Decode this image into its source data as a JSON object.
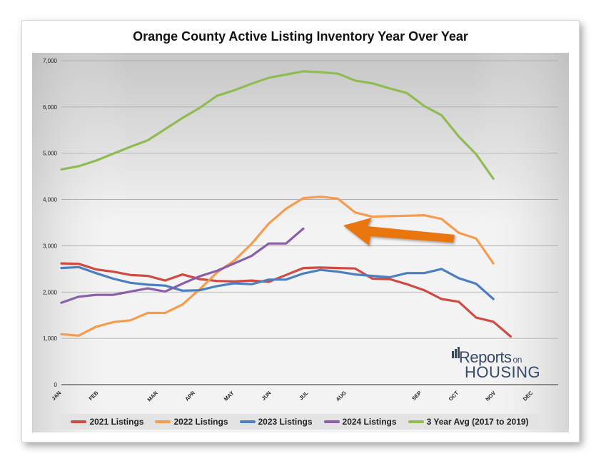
{
  "chart_data": {
    "type": "line",
    "title": "Orange County Active Listing Inventory Year Over Year",
    "xlabel": "",
    "ylabel": "",
    "ylim": [
      0,
      7000
    ],
    "yticks": [
      "0",
      "1,000",
      "2,000",
      "3,000",
      "4,000",
      "5,000",
      "6,000",
      "7,000"
    ],
    "grid": true,
    "legend_position": "bottom",
    "month_labels": [
      {
        "label": "JAN",
        "week": 0
      },
      {
        "label": "FEB",
        "week": 4.3
      },
      {
        "label": "MAR",
        "week": 11.2
      },
      {
        "label": "APR",
        "week": 15.5
      },
      {
        "label": "MAY",
        "week": 20.0
      },
      {
        "label": "JUN",
        "week": 24.3
      },
      {
        "label": "JUL",
        "week": 28.6
      },
      {
        "label": "AUG",
        "week": 33.0
      },
      {
        "label": "SEP",
        "week": 41.7
      },
      {
        "label": "OCT",
        "week": 46.0
      },
      {
        "label": "NOV",
        "week": 50.3
      },
      {
        "label": "DEC",
        "week": 54.6
      }
    ],
    "x_max_week": 57.5,
    "series": [
      {
        "name": "2021 Listings",
        "color": "#d04a43",
        "points": [
          [
            0,
            2620
          ],
          [
            2,
            2610
          ],
          [
            4,
            2490
          ],
          [
            6,
            2440
          ],
          [
            8,
            2370
          ],
          [
            10,
            2350
          ],
          [
            12,
            2250
          ],
          [
            14,
            2380
          ],
          [
            16,
            2280
          ],
          [
            18,
            2240
          ],
          [
            20,
            2230
          ],
          [
            22,
            2250
          ],
          [
            24,
            2220
          ],
          [
            26,
            2370
          ],
          [
            28,
            2520
          ],
          [
            30,
            2530
          ],
          [
            32,
            2520
          ],
          [
            34,
            2510
          ],
          [
            36,
            2290
          ],
          [
            38,
            2280
          ],
          [
            40,
            2170
          ],
          [
            42,
            2040
          ],
          [
            44,
            1850
          ],
          [
            46,
            1790
          ],
          [
            48,
            1450
          ],
          [
            50,
            1360
          ],
          [
            52,
            1040
          ]
        ]
      },
      {
        "name": "2022 Listings",
        "color": "#f59c4e",
        "points": [
          [
            0,
            1090
          ],
          [
            2,
            1060
          ],
          [
            4,
            1250
          ],
          [
            6,
            1350
          ],
          [
            8,
            1390
          ],
          [
            10,
            1550
          ],
          [
            12,
            1550
          ],
          [
            14,
            1730
          ],
          [
            16,
            2060
          ],
          [
            18,
            2420
          ],
          [
            20,
            2680
          ],
          [
            22,
            3040
          ],
          [
            24,
            3480
          ],
          [
            26,
            3800
          ],
          [
            28,
            4030
          ],
          [
            30,
            4060
          ],
          [
            32,
            4020
          ],
          [
            34,
            3720
          ],
          [
            36,
            3630
          ],
          [
            38,
            3640
          ],
          [
            40,
            3650
          ],
          [
            42,
            3660
          ],
          [
            44,
            3580
          ],
          [
            46,
            3280
          ],
          [
            48,
            3160
          ],
          [
            50,
            2620
          ]
        ]
      },
      {
        "name": "2023 Listings",
        "color": "#4a7fc1",
        "points": [
          [
            0,
            2520
          ],
          [
            2,
            2540
          ],
          [
            4,
            2410
          ],
          [
            6,
            2290
          ],
          [
            8,
            2200
          ],
          [
            10,
            2160
          ],
          [
            12,
            2140
          ],
          [
            14,
            2030
          ],
          [
            16,
            2040
          ],
          [
            18,
            2130
          ],
          [
            20,
            2190
          ],
          [
            22,
            2170
          ],
          [
            24,
            2270
          ],
          [
            26,
            2270
          ],
          [
            28,
            2400
          ],
          [
            30,
            2480
          ],
          [
            32,
            2440
          ],
          [
            34,
            2380
          ],
          [
            36,
            2350
          ],
          [
            38,
            2320
          ],
          [
            40,
            2410
          ],
          [
            42,
            2410
          ],
          [
            44,
            2500
          ],
          [
            46,
            2300
          ],
          [
            48,
            2180
          ],
          [
            50,
            1850
          ]
        ]
      },
      {
        "name": "2024 Listings",
        "color": "#8a5ea8",
        "points": [
          [
            0,
            1770
          ],
          [
            2,
            1900
          ],
          [
            4,
            1940
          ],
          [
            6,
            1940
          ],
          [
            8,
            2010
          ],
          [
            10,
            2080
          ],
          [
            12,
            2010
          ],
          [
            14,
            2180
          ],
          [
            16,
            2340
          ],
          [
            18,
            2460
          ],
          [
            20,
            2620
          ],
          [
            22,
            2780
          ],
          [
            24,
            3050
          ],
          [
            26,
            3050
          ],
          [
            28,
            3370
          ]
        ]
      },
      {
        "name": "3 Year Avg (2017 to 2019)",
        "color": "#8fbc52",
        "points": [
          [
            0,
            4650
          ],
          [
            2,
            4720
          ],
          [
            4,
            4840
          ],
          [
            6,
            4990
          ],
          [
            8,
            5140
          ],
          [
            10,
            5280
          ],
          [
            12,
            5520
          ],
          [
            14,
            5760
          ],
          [
            16,
            5980
          ],
          [
            18,
            6240
          ],
          [
            20,
            6360
          ],
          [
            22,
            6500
          ],
          [
            24,
            6630
          ],
          [
            26,
            6700
          ],
          [
            28,
            6770
          ],
          [
            30,
            6750
          ],
          [
            32,
            6720
          ],
          [
            34,
            6570
          ],
          [
            36,
            6510
          ],
          [
            38,
            6400
          ],
          [
            40,
            6300
          ],
          [
            42,
            6020
          ],
          [
            44,
            5820
          ],
          [
            46,
            5360
          ],
          [
            48,
            4980
          ],
          [
            50,
            4450
          ]
        ]
      }
    ]
  },
  "logo": {
    "reports": "Reports",
    "on": "on",
    "housing": "HOUSING"
  },
  "colors": {
    "plot_background_top": "#c9c9c9",
    "plot_background_mid": "#f4f4f4",
    "arrow": "#e8740f"
  }
}
